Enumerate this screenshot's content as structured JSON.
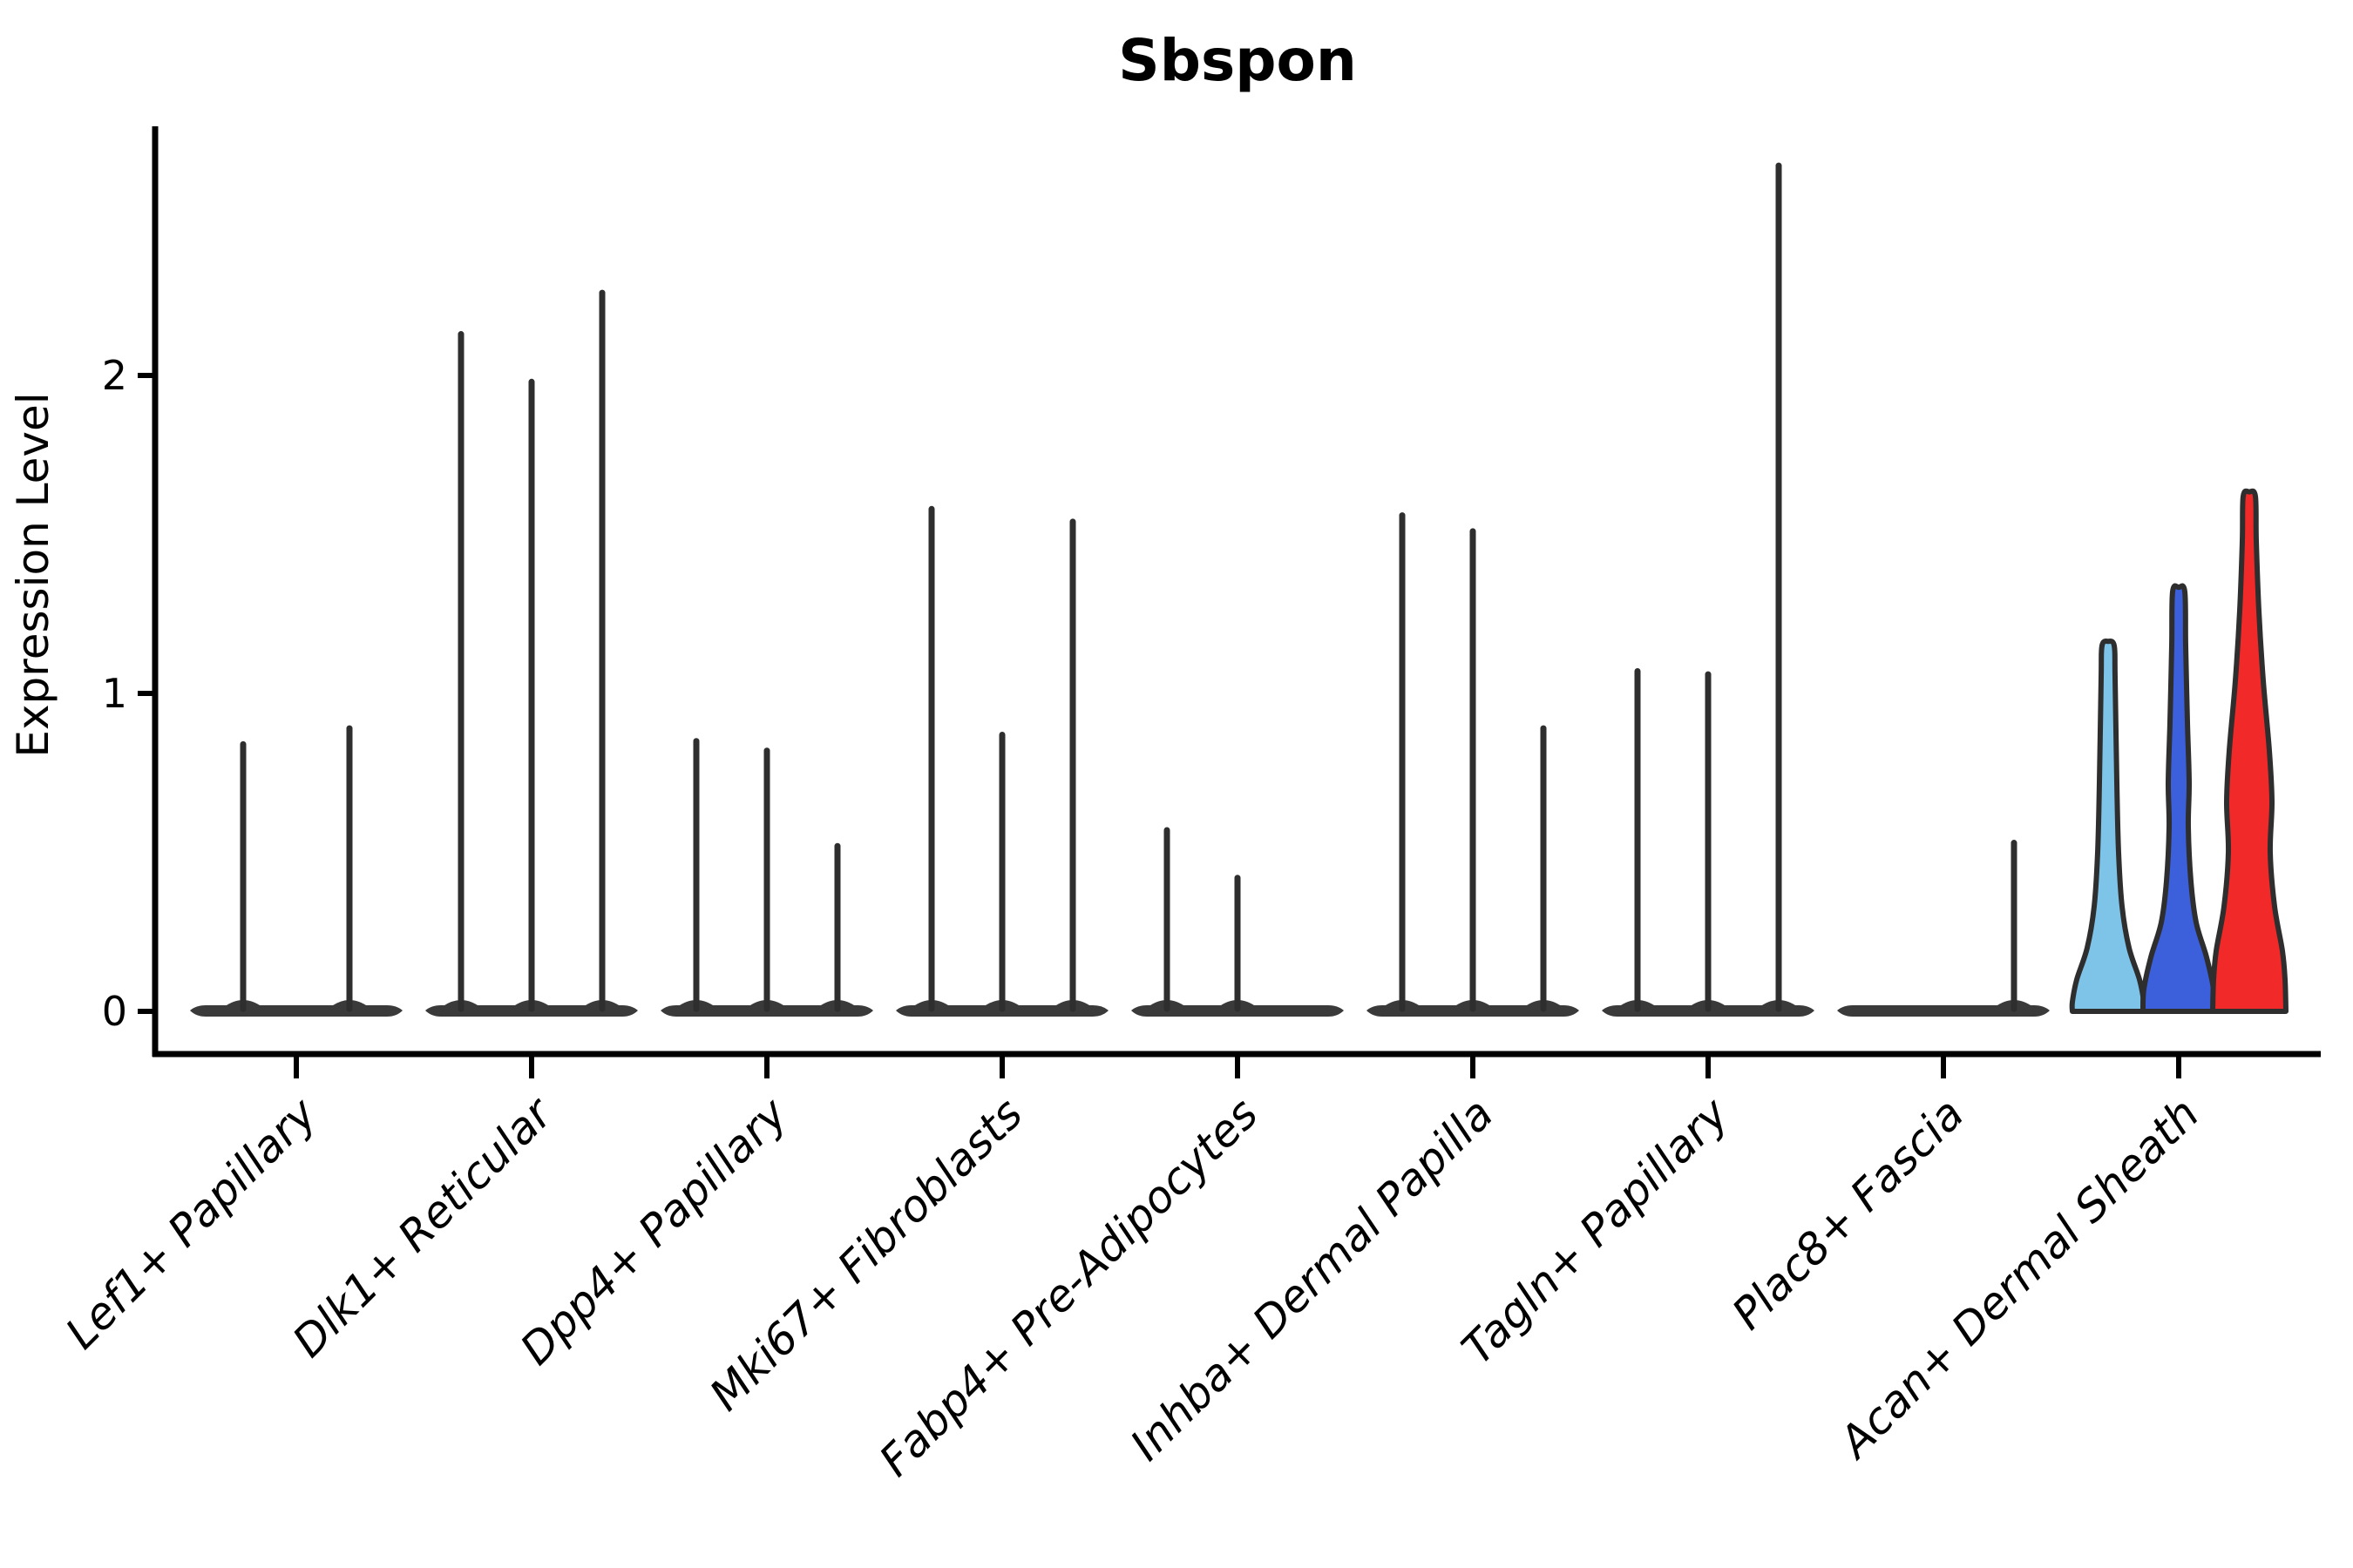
{
  "chart_data": {
    "type": "violin",
    "title": "Sbspon",
    "xlabel": "",
    "ylabel": "Expression Level",
    "yticks": [
      "0",
      "1",
      "2"
    ],
    "ylim": [
      0,
      2.78
    ],
    "grid": false,
    "legend": null,
    "categories": [
      "Lef1+ Papillary",
      "Dlk1+ Reticular",
      "Dpp4+ Papillary",
      "Mki67+ Fibroblasts",
      "Fabp4+ Pre-Adipocytes",
      "Inhba+ Dermal Papilla",
      "Tagln+ Papillary",
      "Plac8+ Fascia",
      "Acan+ Dermal Sheath"
    ],
    "groups": [
      {
        "category": "Lef1+ Papillary",
        "violins": [
          {
            "max": 0.84
          },
          {
            "max": 0.89
          }
        ]
      },
      {
        "category": "Dlk1+ Reticular",
        "violins": [
          {
            "max": 2.13
          },
          {
            "max": 1.98
          },
          {
            "max": 2.26
          }
        ]
      },
      {
        "category": "Dpp4+ Papillary",
        "violins": [
          {
            "max": 0.85
          },
          {
            "max": 0.82
          },
          {
            "max": 0.52
          }
        ]
      },
      {
        "category": "Mki67+ Fibroblasts",
        "violins": [
          {
            "max": 1.58
          },
          {
            "max": 0.87
          },
          {
            "max": 1.54
          }
        ]
      },
      {
        "category": "Fabp4+ Pre-Adipocytes",
        "violins": [
          {
            "max": 0.57
          },
          {
            "max": 0.42
          },
          {
            "max": 0.0
          }
        ]
      },
      {
        "category": "Inhba+ Dermal Papilla",
        "violins": [
          {
            "max": 1.56
          },
          {
            "max": 1.51
          },
          {
            "max": 0.89
          }
        ]
      },
      {
        "category": "Tagln+ Papillary",
        "violins": [
          {
            "max": 1.07
          },
          {
            "max": 1.06
          },
          {
            "max": 2.66
          }
        ]
      },
      {
        "category": "Plac8+ Fascia",
        "violins": [
          {
            "max": 0.0
          },
          {
            "max": 0.0
          },
          {
            "max": 0.53
          }
        ]
      },
      {
        "category": "Acan+ Dermal Sheath",
        "violins": [
          {
            "max": 1.15,
            "fill": "#7EC4E9",
            "profile": [
              [
                1.15,
                7
              ],
              [
                1.05,
                8
              ],
              [
                0.72,
                10
              ],
              [
                0.5,
                12
              ],
              [
                0.33,
                16
              ],
              [
                0.2,
                24
              ],
              [
                0.1,
                36
              ],
              [
                0.03,
                41
              ],
              [
                0.0,
                41
              ]
            ]
          },
          {
            "max": 1.32,
            "fill": "#3C5FDC",
            "profile": [
              [
                1.32,
                7
              ],
              [
                1.15,
                8
              ],
              [
                0.91,
                10
              ],
              [
                0.72,
                12
              ],
              [
                0.58,
                11
              ],
              [
                0.41,
                14
              ],
              [
                0.28,
                20
              ],
              [
                0.17,
                32
              ],
              [
                0.07,
                40
              ],
              [
                0.0,
                41
              ]
            ]
          },
          {
            "max": 1.62,
            "fill": "#F22929",
            "profile": [
              [
                1.62,
                7
              ],
              [
                1.48,
                8
              ],
              [
                1.26,
                11
              ],
              [
                1.04,
                16
              ],
              [
                0.82,
                23
              ],
              [
                0.66,
                26
              ],
              [
                0.5,
                24
              ],
              [
                0.33,
                29
              ],
              [
                0.19,
                38
              ],
              [
                0.1,
                41
              ],
              [
                0.0,
                42
              ]
            ]
          }
        ]
      }
    ],
    "colors": {
      "violin_body": "#3A3A3A",
      "violin_outline": "#2E2E2E",
      "axis": "#000000",
      "highlight_fills": [
        "#7EC4E9",
        "#3C5FDC",
        "#F22929"
      ]
    }
  }
}
